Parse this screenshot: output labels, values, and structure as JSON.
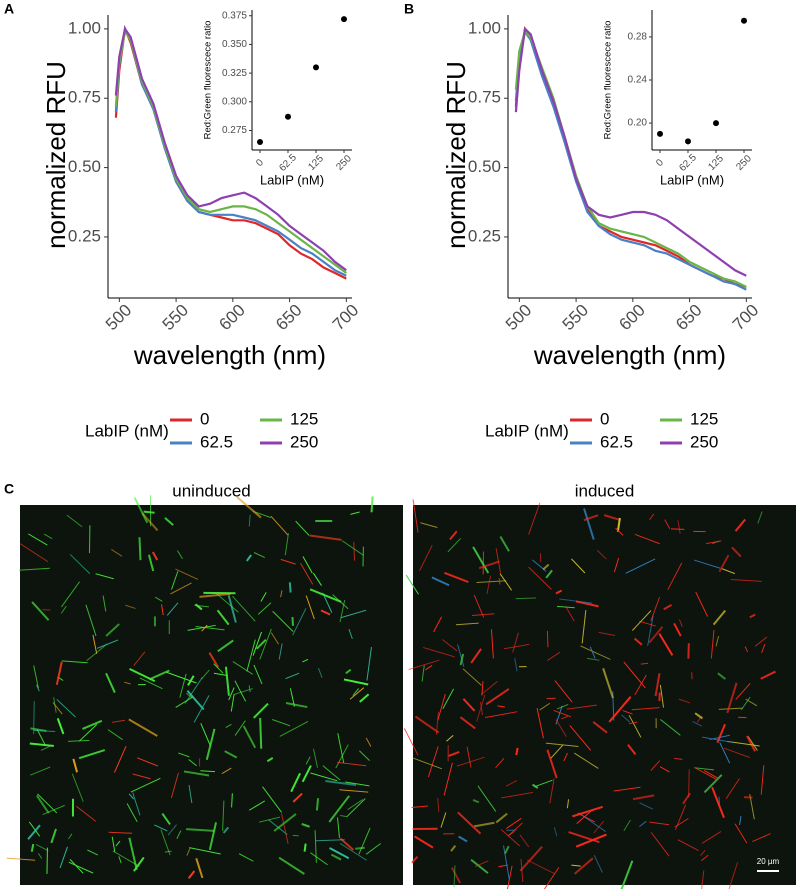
{
  "chart_data": [
    {
      "type": "line",
      "panel": "A",
      "ylabel": "normalized RFU",
      "xlabel": "wavelength (nm)",
      "legend_title": "LabIP (nM)",
      "x": [
        497,
        500,
        505,
        510,
        520,
        530,
        540,
        550,
        560,
        570,
        580,
        590,
        600,
        610,
        620,
        630,
        640,
        650,
        660,
        670,
        680,
        690,
        700
      ],
      "xlim": [
        490,
        705
      ],
      "xticks": [
        500,
        550,
        600,
        650,
        700
      ],
      "ylim": [
        0.03,
        1.05
      ],
      "yticks": [
        0.25,
        {
          "value": 0.5,
          "label": "0.50"
        },
        {
          "value": 0.75,
          "label": "0.75"
        },
        {
          "value": 1.0,
          "label": "1.00"
        }
      ],
      "series": [
        {
          "name": "0",
          "color": "#e0262a",
          "values": [
            0.68,
            0.85,
            1.0,
            0.95,
            0.8,
            0.72,
            0.58,
            0.45,
            0.38,
            0.34,
            0.33,
            0.32,
            0.31,
            0.31,
            0.3,
            0.28,
            0.26,
            0.22,
            0.19,
            0.17,
            0.14,
            0.12,
            0.1
          ]
        },
        {
          "name": "62.5",
          "color": "#4a80c4",
          "values": [
            0.7,
            0.87,
            1.0,
            0.96,
            0.8,
            0.71,
            0.57,
            0.45,
            0.38,
            0.34,
            0.33,
            0.33,
            0.33,
            0.32,
            0.31,
            0.29,
            0.27,
            0.24,
            0.21,
            0.19,
            0.16,
            0.13,
            0.11
          ]
        },
        {
          "name": "125",
          "color": "#6ab547",
          "values": [
            0.72,
            0.88,
            0.99,
            0.96,
            0.81,
            0.72,
            0.58,
            0.46,
            0.39,
            0.35,
            0.34,
            0.35,
            0.36,
            0.36,
            0.35,
            0.33,
            0.3,
            0.27,
            0.24,
            0.21,
            0.18,
            0.15,
            0.12
          ]
        },
        {
          "name": "250",
          "color": "#8e3fb0",
          "values": [
            0.76,
            0.9,
            1.0,
            0.97,
            0.82,
            0.73,
            0.59,
            0.47,
            0.4,
            0.36,
            0.37,
            0.39,
            0.4,
            0.41,
            0.39,
            0.36,
            0.33,
            0.29,
            0.26,
            0.23,
            0.2,
            0.16,
            0.13
          ]
        }
      ]
    },
    {
      "type": "scatter",
      "ylabel": "Red:Green fluorescece ratio",
      "xlabel": "LabIP (nM)",
      "categories": [
        "0",
        "62.5",
        "125",
        "250"
      ],
      "values": [
        0.265,
        0.287,
        0.33,
        0.372
      ],
      "color": "#000000",
      "ylim": [
        0.258,
        0.38
      ],
      "yticks": [
        0.275,
        {
          "value": 0.3,
          "label": "0.300"
        },
        0.325,
        {
          "value": 0.35,
          "label": "0.350"
        },
        0.375
      ]
    },
    {
      "type": "line",
      "panel": "B",
      "ylabel": "normalized RFU",
      "xlabel": "wavelength (nm)",
      "legend_title": "LabIP (nM)",
      "x": [
        497,
        500,
        505,
        510,
        520,
        530,
        540,
        550,
        560,
        570,
        580,
        590,
        600,
        610,
        620,
        630,
        640,
        650,
        660,
        670,
        680,
        690,
        700
      ],
      "xlim": [
        490,
        705
      ],
      "xticks": [
        500,
        550,
        600,
        650,
        700
      ],
      "ylim": [
        0.03,
        1.05
      ],
      "yticks": [
        0.25,
        {
          "value": 0.5,
          "label": "0.50"
        },
        {
          "value": 0.75,
          "label": "0.75"
        },
        {
          "value": 1.0,
          "label": "1.00"
        }
      ],
      "series": [
        {
          "name": "0",
          "color": "#e0262a",
          "values": [
            0.72,
            0.88,
            1.0,
            0.97,
            0.84,
            0.73,
            0.6,
            0.46,
            0.35,
            0.29,
            0.27,
            0.25,
            0.24,
            0.23,
            0.22,
            0.2,
            0.18,
            0.15,
            0.13,
            0.11,
            0.1,
            0.08,
            0.07
          ]
        },
        {
          "name": "62.5",
          "color": "#4a80c4",
          "values": [
            0.74,
            0.89,
            0.99,
            0.96,
            0.83,
            0.72,
            0.59,
            0.45,
            0.34,
            0.29,
            0.26,
            0.24,
            0.23,
            0.22,
            0.2,
            0.19,
            0.17,
            0.15,
            0.13,
            0.11,
            0.09,
            0.08,
            0.06
          ]
        },
        {
          "name": "125",
          "color": "#6ab547",
          "values": [
            0.78,
            0.92,
            0.99,
            0.97,
            0.86,
            0.75,
            0.61,
            0.47,
            0.36,
            0.3,
            0.28,
            0.27,
            0.26,
            0.25,
            0.23,
            0.21,
            0.19,
            0.16,
            0.14,
            0.12,
            0.1,
            0.09,
            0.07
          ]
        },
        {
          "name": "250",
          "color": "#8e3fb0",
          "values": [
            0.7,
            0.85,
            1.0,
            0.98,
            0.85,
            0.74,
            0.61,
            0.46,
            0.36,
            0.33,
            0.32,
            0.33,
            0.34,
            0.34,
            0.33,
            0.31,
            0.28,
            0.25,
            0.22,
            0.19,
            0.16,
            0.13,
            0.11
          ]
        }
      ]
    },
    {
      "type": "scatter",
      "ylabel": "Red:Green fluorescece ratio",
      "xlabel": "LabIP (nM)",
      "categories": [
        "0",
        "62.5",
        "125",
        "250"
      ],
      "values": [
        0.19,
        0.183,
        0.2,
        0.295
      ],
      "color": "#000000",
      "ylim": [
        0.175,
        0.305
      ],
      "yticks": [
        {
          "value": 0.2,
          "label": "0.20"
        },
        {
          "value": 0.24,
          "label": "0.24"
        },
        {
          "value": 0.28,
          "label": "0.28"
        }
      ]
    }
  ],
  "panel_c": {
    "label": "C",
    "images": [
      {
        "title": "uninduced"
      },
      {
        "title": "induced",
        "scale_bar": "20 µm"
      }
    ]
  }
}
